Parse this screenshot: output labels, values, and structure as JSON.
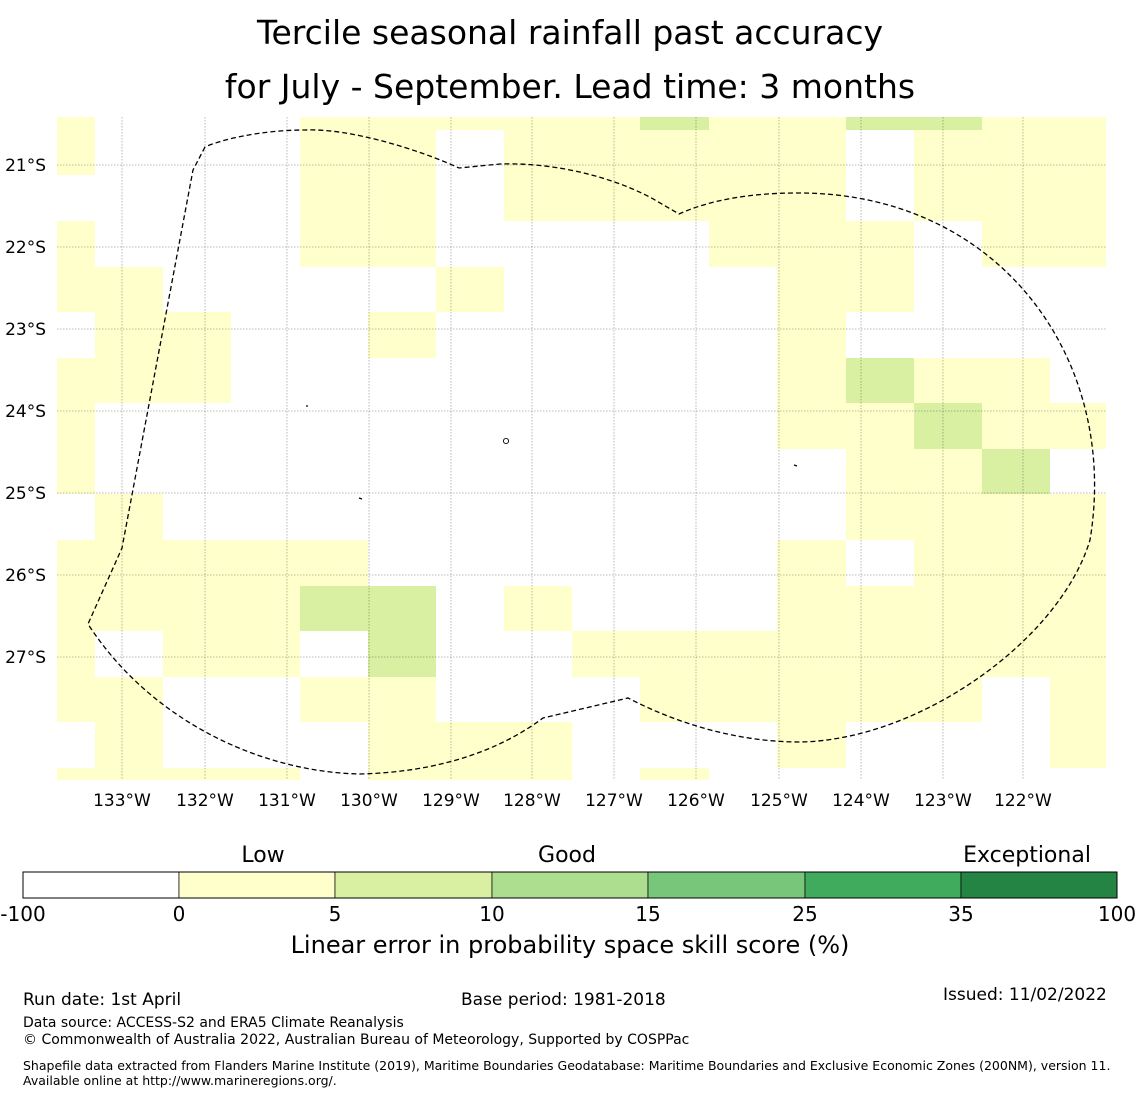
{
  "title": {
    "line1": "Tercile seasonal rainfall past accuracy",
    "line2": "for July - September. Lead time: 3 months"
  },
  "map": {
    "lon_labels": [
      "133°W",
      "132°W",
      "131°W",
      "130°W",
      "129°W",
      "128°W",
      "127°W",
      "126°W",
      "125°W",
      "124°W",
      "123°W",
      "122°W"
    ],
    "lat_labels": [
      "21°S",
      "22°S",
      "23°S",
      "24°S",
      "25°S",
      "26°S",
      "27°S"
    ],
    "colors": {
      "bin0_5": "#ffffcc",
      "bin5_10": "#d9f0a3",
      "boundary": "#000000"
    },
    "grid_rows": [
      "211110000000",
      "211110000000",
      "222221111111",
      "221112211111",
      "211221100000",
      "222222111111",
      "221111111111",
      "221111112111",
      "211111112222",
      "211110000000",
      "211110000000",
      "211110000000",
      "211110000000",
      "211110000000",
      "211110000000"
    ]
  },
  "cells": {
    "row0": [
      [
        0,
        1
      ],
      [
        4,
        1
      ],
      [
        5,
        1
      ],
      [
        6,
        1
      ],
      [
        7,
        1
      ],
      [
        8,
        1
      ],
      [
        9,
        2
      ],
      [
        10,
        1
      ],
      [
        11,
        1
      ],
      [
        12,
        1
      ],
      [
        13,
        1
      ],
      [
        14,
        1
      ],
      [
        15,
        1
      ],
      [
        16,
        1
      ],
      [
        17,
        1
      ],
      [
        18,
        1
      ],
      [
        19,
        1
      ],
      [
        20,
        1
      ],
      [
        23,
        1
      ],
      [
        24,
        1
      ],
      [
        25,
        1
      ],
      [
        26,
        1
      ],
      [
        27,
        1
      ],
      [
        28,
        1
      ]
    ],
    "row1": [
      [
        4,
        1
      ],
      [
        5,
        1
      ],
      [
        6,
        1
      ],
      [
        7,
        1
      ],
      [
        8,
        1
      ],
      [
        9,
        1
      ],
      [
        10,
        1
      ],
      [
        11,
        1
      ],
      [
        12,
        1
      ],
      [
        13,
        1
      ],
      [
        14,
        1
      ],
      [
        15,
        1
      ],
      [
        16,
        1
      ],
      [
        17,
        1
      ],
      [
        18,
        1
      ],
      [
        19,
        1
      ],
      [
        20,
        1
      ],
      [
        21,
        1
      ],
      [
        22,
        1
      ],
      [
        23,
        1
      ],
      [
        24,
        1
      ],
      [
        25,
        1
      ],
      [
        26,
        1
      ],
      [
        27,
        1
      ],
      [
        28,
        1
      ]
    ],
    "row2": [
      [
        0,
        1
      ],
      [
        4,
        1
      ],
      [
        5,
        1
      ],
      [
        6,
        1
      ],
      [
        7,
        1
      ],
      [
        8,
        1
      ],
      [
        9,
        1
      ],
      [
        10,
        1
      ],
      [
        11,
        1
      ],
      [
        12,
        1
      ],
      [
        13,
        1
      ],
      [
        14,
        1
      ],
      [
        15,
        1
      ],
      [
        16,
        1
      ],
      [
        17,
        1
      ],
      [
        18,
        1
      ],
      [
        19,
        1
      ],
      [
        20,
        1
      ],
      [
        21,
        1
      ],
      [
        22,
        1
      ],
      [
        23,
        1
      ],
      [
        24,
        1
      ],
      [
        25,
        1
      ],
      [
        26,
        1
      ],
      [
        27,
        1
      ],
      [
        28,
        1
      ]
    ]
  },
  "colorbar": {
    "category_labels": [
      "Low",
      "Good",
      "Exceptional"
    ],
    "ticks": [
      "-100",
      "0",
      "5",
      "10",
      "15",
      "25",
      "35",
      "100"
    ],
    "colors": [
      "#ffffff",
      "#ffffcc",
      "#d9f0a3",
      "#addd8e",
      "#78c679",
      "#41ab5d",
      "#238443"
    ],
    "title": "Linear error in probability space skill score (%)"
  },
  "footer": {
    "run_date": "Run date: 1st April",
    "base_period": "Base period: 1981-2018",
    "issued": "Issued: 11/02/2022",
    "data_source": "Data source: ACCESS-S2 and ERA5 Climate Reanalysis",
    "copyright": "© Commonwealth of Australia 2022, Australian Bureau of Meteorology, Supported by COSPPac",
    "shapefile": "Shapefile data extracted from Flanders Marine Institute (2019), Maritime Boundaries Geodatabase: Maritime Boundaries and Exclusive Economic Zones (200NM), version 11. Available online at http://www.marineregions.org/."
  }
}
